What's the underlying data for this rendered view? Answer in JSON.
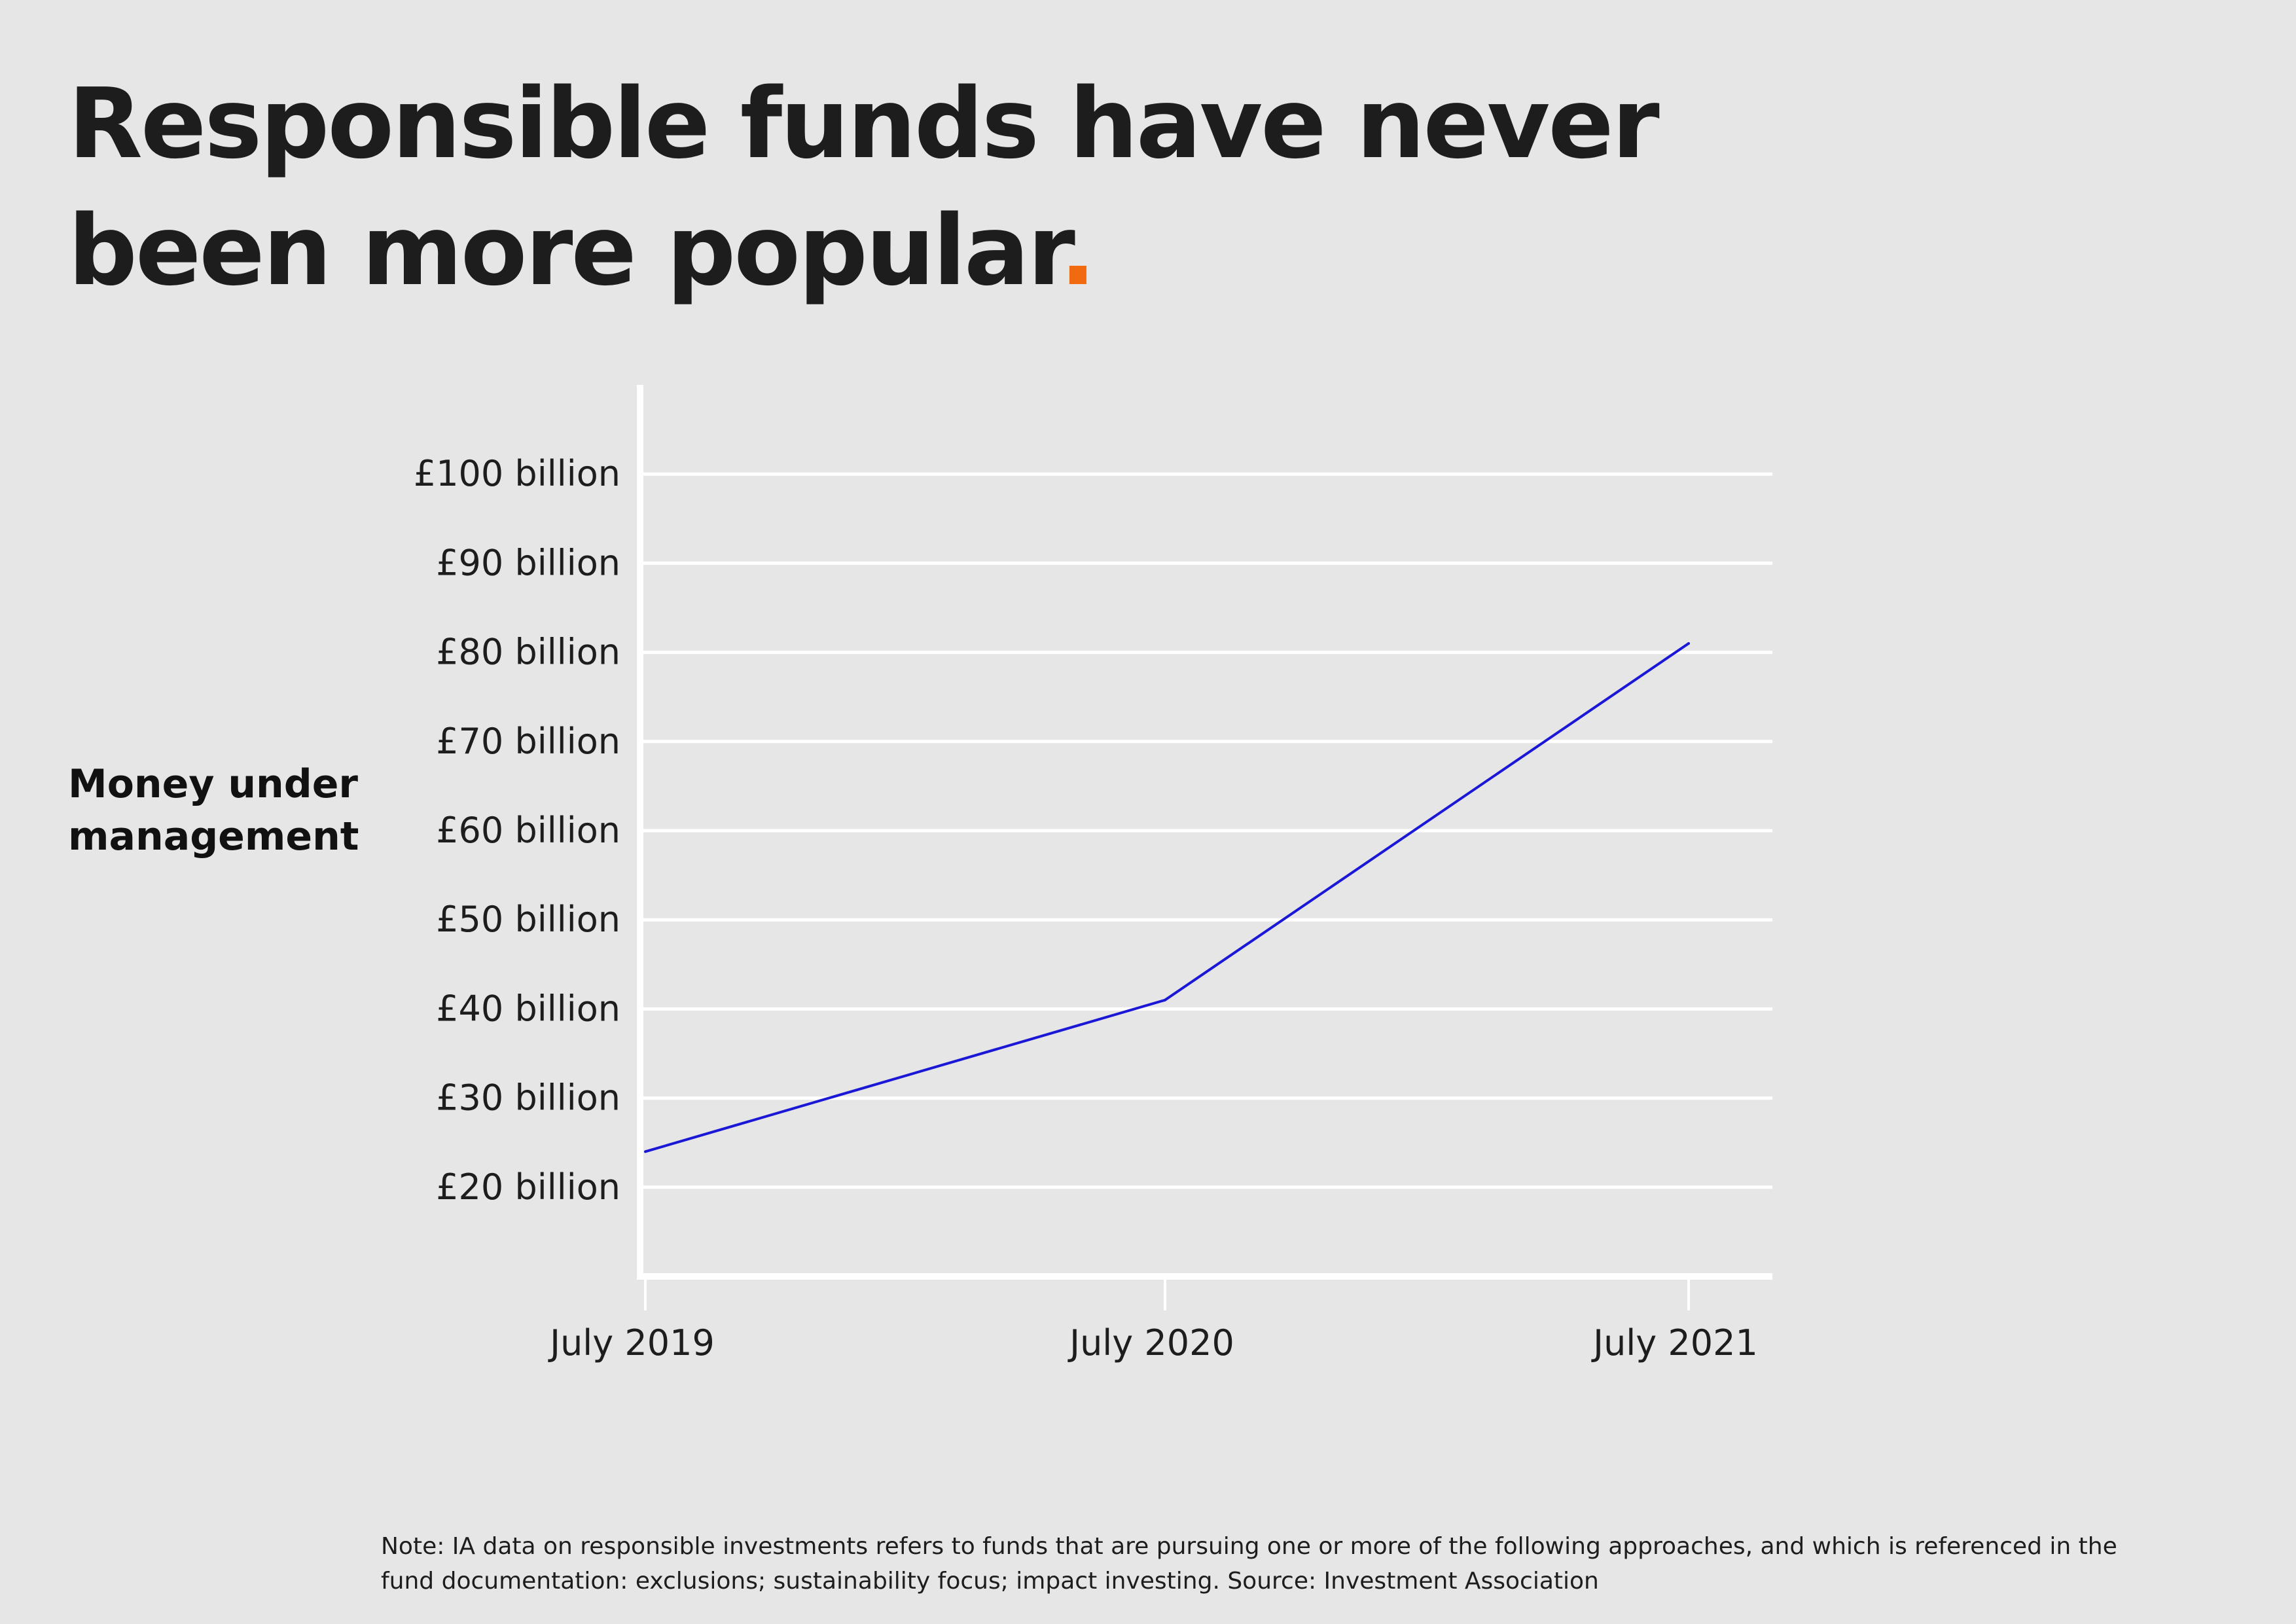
{
  "title": {
    "text": "Responsible funds have never been more popular",
    "dot": "."
  },
  "note": "Note: IA data on responsible investments refers to funds that are pursuing one or more of the following approaches, and which is referenced in the fund documentation: exclusions; sustainability focus; impact investing. Source: Investment Association",
  "colors": {
    "line": "#1a18d6",
    "accent": "#f26a10",
    "grid": "#ffffff",
    "background": "#e6e6e7"
  },
  "chart_data": {
    "type": "line",
    "title": "Responsible funds have never been more popular",
    "xlabel": "",
    "ylabel": "Money under management",
    "categories": [
      "July 2019",
      "July 2020",
      "July 2021"
    ],
    "series": [
      {
        "values": [
          24,
          41,
          81
        ]
      }
    ],
    "yticks": [
      20,
      30,
      40,
      50,
      60,
      70,
      80,
      90,
      100
    ],
    "ytick_labels": [
      "£20 billion",
      "£30 billion",
      "£40 billion",
      "£50 billion",
      "£60 billion",
      "£70 billion",
      "£80 billion",
      "£90 billion",
      "£100 billion"
    ],
    "ylim": [
      10,
      110
    ],
    "grid": true,
    "legend": "none"
  }
}
